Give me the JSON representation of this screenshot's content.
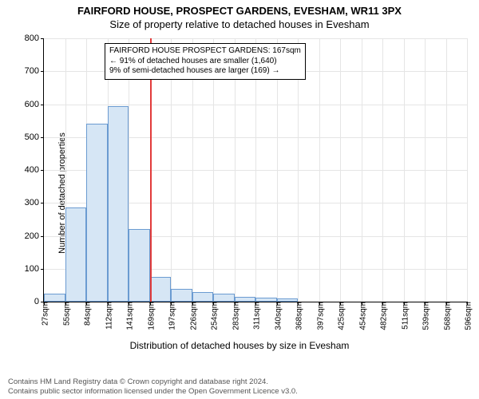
{
  "type": "histogram",
  "title_line1": "FAIRFORD HOUSE, PROSPECT GARDENS, EVESHAM, WR11 3PX",
  "title_line2": "Size of property relative to detached houses in Evesham",
  "ylabel": "Number of detached properties",
  "xlabel": "Distribution of detached houses by size in Evesham",
  "background_color": "#ffffff",
  "grid_color": "#e5e5e5",
  "axis_color": "#000000",
  "bar_fill": "#d6e6f5",
  "bar_border": "#6b9bd1",
  "ref_line_color": "#e23b3b",
  "ylim": [
    0,
    800
  ],
  "ytick_step": 100,
  "yticks": [
    0,
    100,
    200,
    300,
    400,
    500,
    600,
    700,
    800
  ],
  "xticks": [
    "27sqm",
    "55sqm",
    "84sqm",
    "112sqm",
    "141sqm",
    "169sqm",
    "197sqm",
    "226sqm",
    "254sqm",
    "283sqm",
    "311sqm",
    "340sqm",
    "368sqm",
    "397sqm",
    "425sqm",
    "454sqm",
    "482sqm",
    "511sqm",
    "539sqm",
    "568sqm",
    "596sqm"
  ],
  "bars": [
    25,
    285,
    540,
    595,
    220,
    75,
    40,
    30,
    25,
    15,
    12,
    10,
    0,
    0,
    0,
    0,
    0,
    0,
    0,
    0
  ],
  "bar_width": 1.0,
  "ref_line_index": 5,
  "infobox": {
    "line1": "FAIRFORD HOUSE PROSPECT GARDENS: 167sqm",
    "line2": "← 91% of detached houses are smaller (1,640)",
    "line3": "9% of semi-detached houses are larger (169) →"
  },
  "footer_line1": "Contains HM Land Registry data © Crown copyright and database right 2024.",
  "footer_line2": "Contains public sector information licensed under the Open Government Licence v3.0."
}
